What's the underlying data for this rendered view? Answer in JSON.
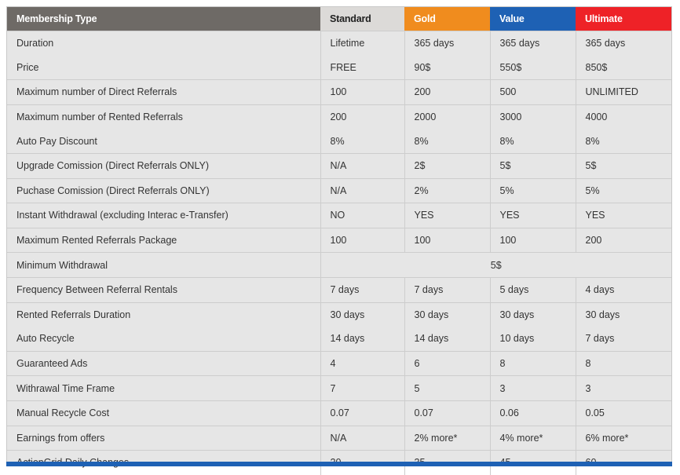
{
  "header": {
    "type_label": "Membership Type",
    "plans": [
      "Standard",
      "Gold",
      "Value",
      "Ultimate"
    ]
  },
  "plan_colors": {
    "Standard": "#dcdad8",
    "Gold": "#f08c1e",
    "Value": "#1e61b4",
    "Ultimate": "#ee2227"
  },
  "rows": [
    {
      "label": "Duration",
      "values": [
        "Lifetime",
        "365 days",
        "365 days",
        "365 days"
      ]
    },
    {
      "label": "Price",
      "values": [
        "FREE",
        "90$",
        "550$",
        "850$"
      ]
    },
    {
      "label": "Maximum number of Direct Referrals",
      "values": [
        "100",
        "200",
        "500",
        "UNLIMITED"
      ]
    },
    {
      "label": "Maximum number of Rented Referrals",
      "values": [
        "200",
        "2000",
        "3000",
        "4000"
      ]
    },
    {
      "label": "Auto Pay Discount",
      "values": [
        "8%",
        "8%",
        "8%",
        "8%"
      ]
    },
    {
      "label": "Upgrade Comission (Direct Referrals ONLY)",
      "values": [
        "N/A",
        "2$",
        "5$",
        "5$"
      ]
    },
    {
      "label": "Puchase Comission (Direct Referrals ONLY)",
      "values": [
        "N/A",
        "2%",
        "5%",
        "5%"
      ]
    },
    {
      "label": "Instant Withdrawal (excluding Interac e-Transfer)",
      "values": [
        "NO",
        "YES",
        "YES",
        "YES"
      ]
    },
    {
      "label": "Maximum Rented Referrals Package",
      "values": [
        "100",
        "100",
        "100",
        "200"
      ]
    },
    {
      "label": "Minimum Withdrawal",
      "merged_value": "5$"
    },
    {
      "label": "Frequency Between Referral Rentals",
      "values": [
        "7 days",
        "7 days",
        "5 days",
        "4 days"
      ]
    },
    {
      "label": "Rented Referrals Duration",
      "values": [
        "30 days",
        "30 days",
        "30 days",
        "30 days"
      ]
    },
    {
      "label": "Auto Recycle",
      "values": [
        "14 days",
        "14 days",
        "10 days",
        "7 days"
      ]
    },
    {
      "label": "Guaranteed Ads",
      "values": [
        "4",
        "6",
        "8",
        "8"
      ]
    },
    {
      "label": "Withrawal Time Frame",
      "values": [
        "7",
        "5",
        "3",
        "3"
      ]
    },
    {
      "label": "Manual Recycle Cost",
      "values": [
        "0.07",
        "0.07",
        "0.06",
        "0.05"
      ]
    },
    {
      "label": "Earnings from offers",
      "values": [
        "N/A",
        "2% more*",
        "4% more*",
        "6% more*"
      ]
    },
    {
      "label": "ActionGrid Daily Changes",
      "values": [
        "20",
        "35",
        "45",
        "60"
      ]
    }
  ]
}
